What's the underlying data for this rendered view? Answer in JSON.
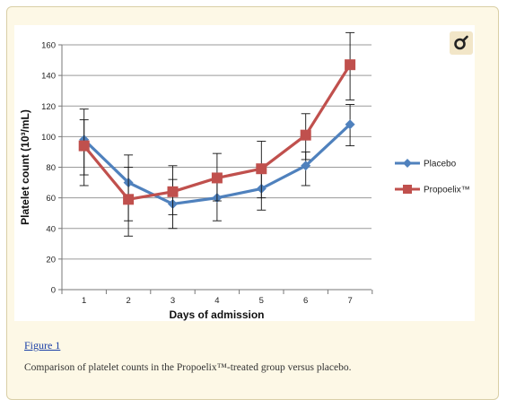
{
  "figure": {
    "link_label": "Figure 1",
    "caption": "Comparison of platelet counts in the Propoelix™-treated group versus placebo."
  },
  "zoom": {
    "icon": "zoom-icon"
  },
  "chart_data": {
    "type": "line",
    "xlabel": "Days of admission",
    "ylabel": "Platelet count (10³/mL)",
    "categories": [
      "1",
      "2",
      "3",
      "4",
      "5",
      "6",
      "7"
    ],
    "ylim": [
      0,
      160
    ],
    "yticks": [
      0,
      20,
      40,
      60,
      80,
      100,
      120,
      140,
      160
    ],
    "grid": true,
    "legend": "right",
    "series": [
      {
        "name": "Placebo",
        "color": "#4f81bd",
        "marker": "diamond",
        "values": [
          98,
          70,
          56,
          60,
          66,
          81,
          108
        ],
        "error_low": [
          68,
          45,
          40,
          45,
          52,
          68,
          94
        ],
        "error_high": [
          118,
          88,
          72,
          75,
          80,
          90,
          121
        ]
      },
      {
        "name": "Propoelix™",
        "color": "#c0504d",
        "marker": "square",
        "values": [
          94,
          59,
          64,
          73,
          79,
          101,
          147
        ],
        "error_low": [
          75,
          35,
          49,
          58,
          60,
          85,
          124
        ],
        "error_high": [
          111,
          80,
          81,
          89,
          97,
          115,
          168
        ]
      }
    ]
  }
}
